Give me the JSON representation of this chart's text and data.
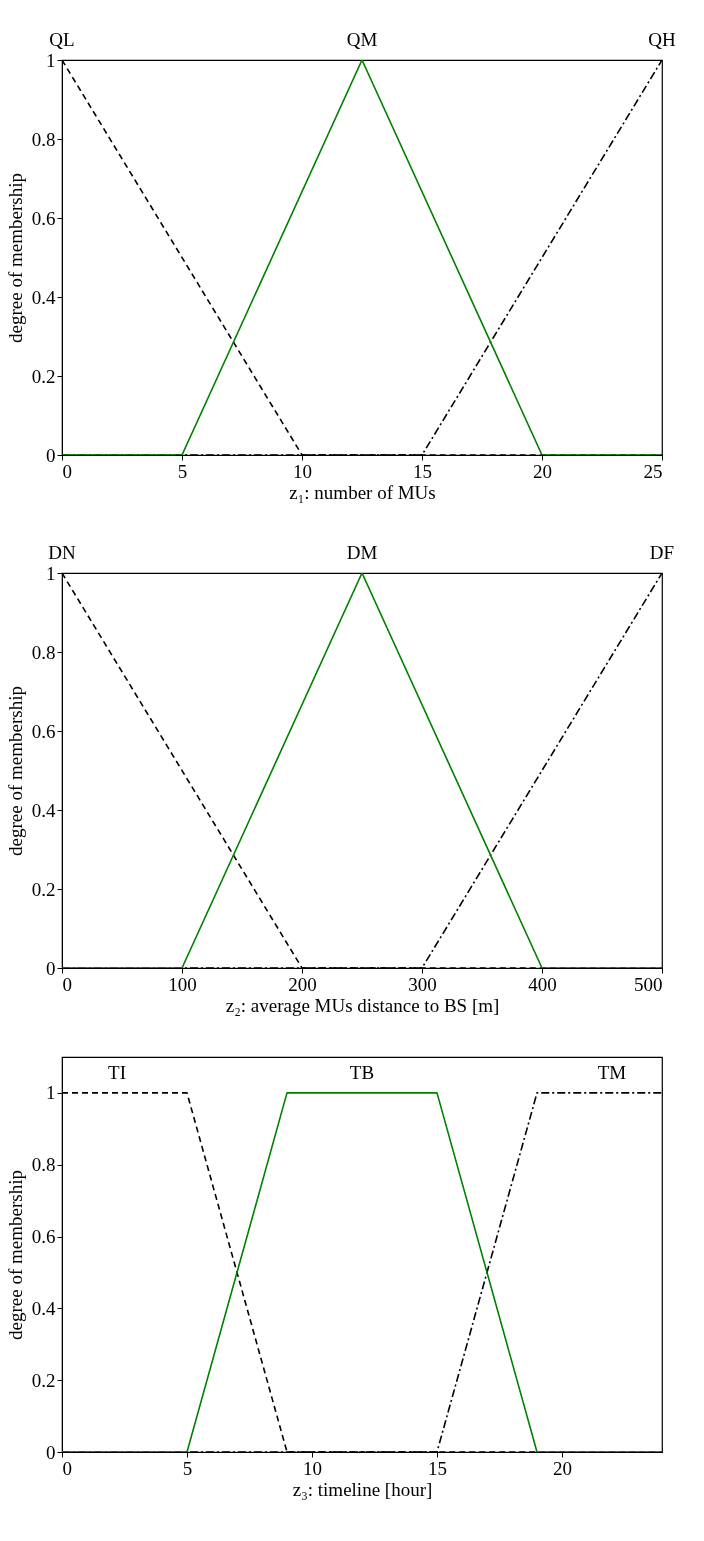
{
  "chart_data": [
    {
      "type": "line",
      "xlabel": "z₁: number of MUs",
      "ylabel": "degree of membership",
      "xlim": [
        0,
        25
      ],
      "ylim": [
        0,
        1
      ],
      "xticks": [
        0,
        5,
        10,
        15,
        20,
        25
      ],
      "yticks": [
        0,
        0.2,
        0.4,
        0.6,
        0.8,
        1
      ],
      "grid": false,
      "marker": "none",
      "series": [
        {
          "color": "#000000",
          "line_style": "dashed",
          "x": [
            0,
            10,
            25
          ],
          "values": [
            1,
            0,
            0
          ]
        },
        {
          "color": "#000000",
          "line_style": "dashdot",
          "x": [
            0,
            15,
            25
          ],
          "values": [
            0,
            0,
            1
          ]
        },
        {
          "color": "#008000",
          "line_style": "solid",
          "x": [
            0,
            5,
            12.5,
            20,
            25
          ],
          "values": [
            0,
            0,
            1,
            0,
            0
          ]
        }
      ],
      "annotations": [
        {
          "text": "QL",
          "x": 0,
          "y": 1
        },
        {
          "text": "QM",
          "x": 12.5,
          "y": 1
        },
        {
          "text": "QH",
          "x": 25,
          "y": 1
        }
      ]
    },
    {
      "type": "line",
      "xlabel": "z₂: average MUs distance to BS [m]",
      "ylabel": "degree of membership",
      "xlim": [
        0,
        500
      ],
      "ylim": [
        0,
        1
      ],
      "xticks": [
        0,
        100,
        200,
        300,
        400,
        500
      ],
      "yticks": [
        0,
        0.2,
        0.4,
        0.6,
        0.8,
        1
      ],
      "grid": false,
      "marker": "none",
      "series": [
        {
          "color": "#000000",
          "line_style": "dashed",
          "x": [
            0,
            200,
            500
          ],
          "values": [
            1,
            0,
            0
          ]
        },
        {
          "color": "#000000",
          "line_style": "dashdot",
          "x": [
            0,
            300,
            500
          ],
          "values": [
            0,
            0,
            1
          ]
        },
        {
          "color": "#008000",
          "line_style": "solid",
          "x": [
            0,
            100,
            250,
            400,
            500
          ],
          "values": [
            0,
            0,
            1,
            0,
            0
          ]
        }
      ],
      "annotations": [
        {
          "text": "DN",
          "x": 0,
          "y": 1
        },
        {
          "text": "DM",
          "x": 250,
          "y": 1
        },
        {
          "text": "DF",
          "x": 500,
          "y": 1
        }
      ]
    },
    {
      "type": "line",
      "xlabel": "z₃: timeline [hour]",
      "ylabel": "degree of membership",
      "xlim": [
        0,
        24
      ],
      "ylim": [
        0,
        1.1
      ],
      "xticks": [
        0,
        5,
        10,
        15,
        20
      ],
      "yticks": [
        0,
        0.2,
        0.4,
        0.6,
        0.8,
        1
      ],
      "grid": false,
      "marker": "none",
      "series": [
        {
          "color": "#000000",
          "line_style": "dashed",
          "x": [
            0,
            5,
            9,
            24
          ],
          "values": [
            1,
            1,
            0,
            0
          ]
        },
        {
          "color": "#000000",
          "line_style": "dashdot",
          "x": [
            0,
            15,
            19,
            24
          ],
          "values": [
            0,
            0,
            1,
            1
          ]
        },
        {
          "color": "#008000",
          "line_style": "solid",
          "x": [
            0,
            5,
            9,
            15,
            19,
            24
          ],
          "values": [
            0,
            0,
            1,
            1,
            0,
            0
          ]
        }
      ],
      "annotations": [
        {
          "text": "TI",
          "x": 2.2,
          "y": 1
        },
        {
          "text": "TB",
          "x": 12,
          "y": 1
        },
        {
          "text": "TM",
          "x": 22,
          "y": 1
        }
      ]
    }
  ]
}
